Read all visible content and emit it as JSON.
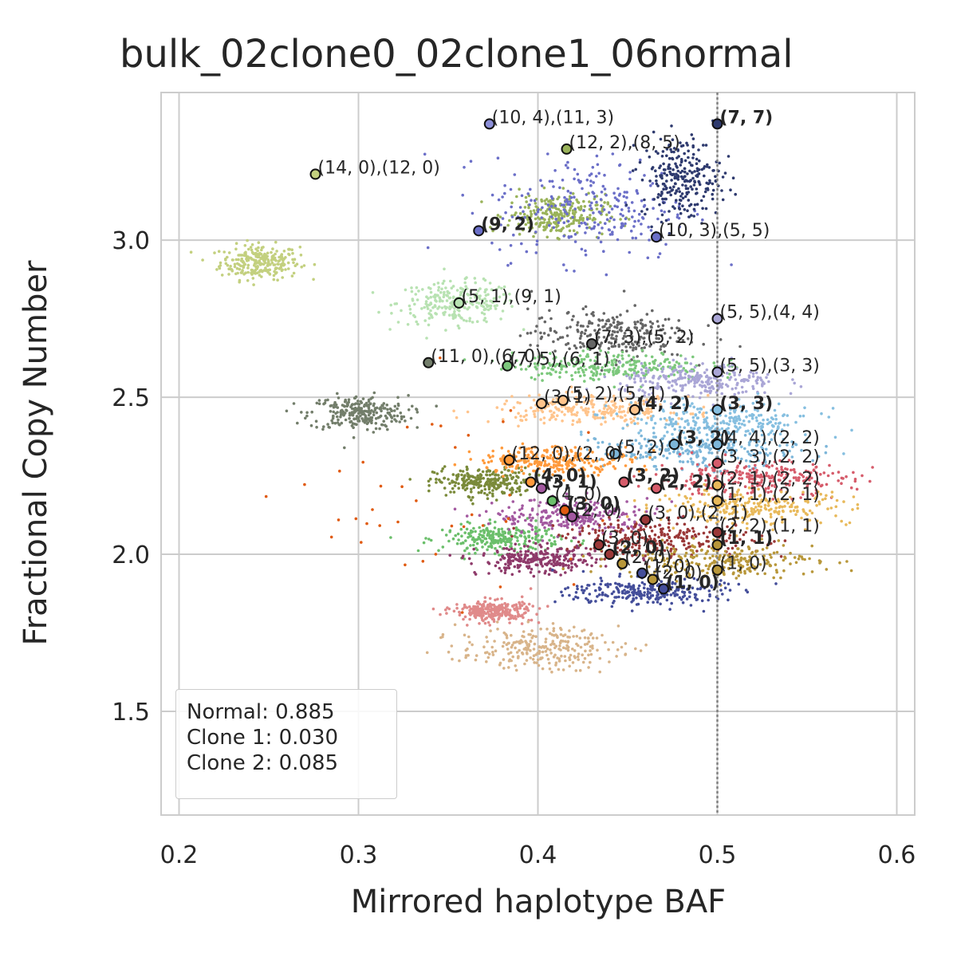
{
  "chart_data": {
    "type": "scatter",
    "title": "bulk_02clone0_02clone1_06normal",
    "xlabel": "Mirrored haplotype BAF",
    "ylabel": "Fractional Copy Number",
    "xlim": [
      0.19,
      0.61
    ],
    "ylim": [
      1.17,
      3.47
    ],
    "xticks": [
      "0.2",
      "0.3",
      "0.4",
      "0.5",
      "0.6"
    ],
    "yticks": [
      "1.5",
      "2.0",
      "2.5",
      "3.0"
    ],
    "grid": true,
    "reference_line": {
      "x": 0.5,
      "style": "dotted"
    },
    "legend": {
      "position": "bottom-left",
      "entries": [
        "Normal: 0.885",
        "Clone 1: 0.030",
        "Clone 2: 0.085"
      ]
    },
    "clusters": [
      {
        "color": "#c3d07f",
        "center": [
          0.245,
          2.93
        ],
        "spread": [
          0.02,
          0.05
        ]
      },
      {
        "color": "#b8e2b2",
        "center": [
          0.355,
          2.8
        ],
        "spread": [
          0.03,
          0.06
        ]
      },
      {
        "color": "#737e6b",
        "center": [
          0.3,
          2.45
        ],
        "spread": [
          0.025,
          0.05
        ]
      },
      {
        "color": "#7a8a3a",
        "center": [
          0.37,
          2.23
        ],
        "spread": [
          0.025,
          0.04
        ]
      },
      {
        "color": "#6bbf6b",
        "center": [
          0.38,
          2.05
        ],
        "spread": [
          0.03,
          0.04
        ]
      },
      {
        "color": "#9ab35a",
        "center": [
          0.41,
          3.08
        ],
        "spread": [
          0.025,
          0.06
        ]
      },
      {
        "color": "#6b6fc8",
        "center": [
          0.43,
          3.1
        ],
        "spread": [
          0.05,
          0.15
        ]
      },
      {
        "color": "#2e3a6e",
        "center": [
          0.48,
          3.2
        ],
        "spread": [
          0.02,
          0.12
        ]
      },
      {
        "color": "#666666",
        "center": [
          0.44,
          2.7
        ],
        "spread": [
          0.04,
          0.07
        ]
      },
      {
        "color": "#7cc87c",
        "center": [
          0.44,
          2.6
        ],
        "spread": [
          0.05,
          0.04
        ]
      },
      {
        "color": "#aaa6d6",
        "center": [
          0.49,
          2.55
        ],
        "spread": [
          0.04,
          0.05
        ]
      },
      {
        "color": "#ffc48c",
        "center": [
          0.43,
          2.46
        ],
        "spread": [
          0.05,
          0.04
        ]
      },
      {
        "color": "#86bfe0",
        "center": [
          0.5,
          2.42
        ],
        "spread": [
          0.05,
          0.06
        ]
      },
      {
        "color": "#7db6d9",
        "center": [
          0.49,
          2.33
        ],
        "spread": [
          0.05,
          0.05
        ]
      },
      {
        "color": "#ff9a3c",
        "center": [
          0.41,
          2.3
        ],
        "spread": [
          0.04,
          0.04
        ]
      },
      {
        "color": "#d65c6b",
        "center": [
          0.52,
          2.24
        ],
        "spread": [
          0.05,
          0.05
        ]
      },
      {
        "color": "#e8b95a",
        "center": [
          0.52,
          2.15
        ],
        "spread": [
          0.05,
          0.05
        ]
      },
      {
        "color": "#a359a0",
        "center": [
          0.42,
          2.12
        ],
        "spread": [
          0.04,
          0.05
        ]
      },
      {
        "color": "#8e3a6a",
        "center": [
          0.4,
          1.98
        ],
        "spread": [
          0.03,
          0.04
        ]
      },
      {
        "color": "#9a3838",
        "center": [
          0.47,
          2.05
        ],
        "spread": [
          0.05,
          0.05
        ]
      },
      {
        "color": "#b8973a",
        "center": [
          0.5,
          1.98
        ],
        "spread": [
          0.05,
          0.05
        ]
      },
      {
        "color": "#444e9a",
        "center": [
          0.46,
          1.88
        ],
        "spread": [
          0.04,
          0.04
        ]
      },
      {
        "color": "#e08a8a",
        "center": [
          0.375,
          1.82
        ],
        "spread": [
          0.02,
          0.03
        ]
      },
      {
        "color": "#d8b48a",
        "center": [
          0.4,
          1.7
        ],
        "spread": [
          0.04,
          0.06
        ]
      },
      {
        "color": "#e05a10",
        "center": [
          0.35,
          2.2
        ],
        "spread": [
          0.08,
          0.4
        ]
      }
    ],
    "points": [
      {
        "x": 0.373,
        "y": 3.37,
        "label": "(10, 4),(11, 3)",
        "bold": false,
        "fill": "#8c8fd8"
      },
      {
        "x": 0.5,
        "y": 3.37,
        "label": "(7, 7)",
        "bold": true,
        "fill": "#2e3a6e"
      },
      {
        "x": 0.416,
        "y": 3.29,
        "label": "(12, 2),(8, 5)",
        "bold": false,
        "fill": "#9ab35a"
      },
      {
        "x": 0.276,
        "y": 3.21,
        "label": "(14, 0),(12, 0)",
        "bold": false,
        "fill": "#c3d07f"
      },
      {
        "x": 0.367,
        "y": 3.03,
        "label": "(9, 2)",
        "bold": true,
        "fill": "#6b6fc8"
      },
      {
        "x": 0.466,
        "y": 3.01,
        "label": "(10, 3),(5, 5)",
        "bold": false,
        "fill": "#6b6fc8"
      },
      {
        "x": 0.356,
        "y": 2.8,
        "label": "(5, 1),(9, 1)",
        "bold": false,
        "fill": "#b8e2b2"
      },
      {
        "x": 0.5,
        "y": 2.75,
        "label": "(5, 5),(4, 4)",
        "bold": false,
        "fill": "#aaa6d6"
      },
      {
        "x": 0.43,
        "y": 2.67,
        "label": "(7, 3),(5, 2)",
        "bold": false,
        "fill": "#666666"
      },
      {
        "x": 0.339,
        "y": 2.61,
        "label": "(11, 0),(6, 0)",
        "bold": false,
        "fill": "#737e6b"
      },
      {
        "x": 0.383,
        "y": 2.6,
        "label": "(7, 5),(6, 1)",
        "bold": false,
        "fill": "#7cc87c"
      },
      {
        "x": 0.5,
        "y": 2.58,
        "label": "(5, 5),(3, 3)",
        "bold": false,
        "fill": "#aaa6d6"
      },
      {
        "x": 0.402,
        "y": 2.48,
        "label": "(3, 1)",
        "bold": false,
        "fill": "#ffc48c"
      },
      {
        "x": 0.414,
        "y": 2.49,
        "label": "(5, 2),(5, 1)",
        "bold": false,
        "fill": "#ffc48c"
      },
      {
        "x": 0.454,
        "y": 2.46,
        "label": "(4, 2)",
        "bold": true,
        "fill": "#ffc48c"
      },
      {
        "x": 0.5,
        "y": 2.46,
        "label": "(3, 3)",
        "bold": true,
        "fill": "#86bfe0"
      },
      {
        "x": 0.476,
        "y": 2.35,
        "label": "(3, 2)",
        "bold": true,
        "fill": "#7db6d9"
      },
      {
        "x": 0.5,
        "y": 2.35,
        "label": "(4, 4),(2, 2)",
        "bold": false,
        "fill": "#7db6d9"
      },
      {
        "x": 0.443,
        "y": 2.32,
        "label": "(5, 2)",
        "bold": false,
        "fill": "#7db6d9"
      },
      {
        "x": 0.5,
        "y": 2.29,
        "label": "(3, 3),(2, 2)",
        "bold": false,
        "fill": "#d65c6b"
      },
      {
        "x": 0.384,
        "y": 2.3,
        "label": "(12, 0),(2, 0)",
        "bold": false,
        "fill": "#ff9a3c"
      },
      {
        "x": 0.396,
        "y": 2.23,
        "label": "(4, 0)",
        "bold": true,
        "fill": "#ff9a3c"
      },
      {
        "x": 0.402,
        "y": 2.21,
        "label": "(3, 1)",
        "bold": true,
        "fill": "#a359a0"
      },
      {
        "x": 0.448,
        "y": 2.23,
        "label": "(3, 2)",
        "bold": true,
        "fill": "#d65c6b"
      },
      {
        "x": 0.466,
        "y": 2.21,
        "label": "(2, 2)",
        "bold": true,
        "fill": "#d65c6b"
      },
      {
        "x": 0.5,
        "y": 2.22,
        "label": "(2, 1),(2, 2)",
        "bold": false,
        "fill": "#e8b95a"
      },
      {
        "x": 0.408,
        "y": 2.17,
        "label": "(4, 0)",
        "bold": false,
        "fill": "#6bbf6b"
      },
      {
        "x": 0.5,
        "y": 2.17,
        "label": "(1, 1),(2, 1)",
        "bold": false,
        "fill": "#e8b95a"
      },
      {
        "x": 0.415,
        "y": 2.14,
        "label": "(3, 0)",
        "bold": true,
        "fill": "#e05a10"
      },
      {
        "x": 0.419,
        "y": 2.12,
        "label": "(2, 0)",
        "bold": false,
        "fill": "#a359a0"
      },
      {
        "x": 0.46,
        "y": 2.11,
        "label": "(3, 0),(2, 1)",
        "bold": false,
        "fill": "#9a3838"
      },
      {
        "x": 0.5,
        "y": 2.07,
        "label": "(2, 2),(1, 1)",
        "bold": false,
        "fill": "#9a3838"
      },
      {
        "x": 0.434,
        "y": 2.03,
        "label": "(3, 0)",
        "bold": false,
        "fill": "#9a3838"
      },
      {
        "x": 0.44,
        "y": 2.0,
        "label": "(2, 0)",
        "bold": true,
        "fill": "#9a3838"
      },
      {
        "x": 0.5,
        "y": 2.03,
        "label": "(1, 1)",
        "bold": true,
        "fill": "#b8973a"
      },
      {
        "x": 0.447,
        "y": 1.97,
        "label": "(2, 0)",
        "bold": false,
        "fill": "#b8973a"
      },
      {
        "x": 0.458,
        "y": 1.94,
        "label": "(1, 0)",
        "bold": false,
        "fill": "#444e9a"
      },
      {
        "x": 0.5,
        "y": 1.95,
        "label": "(1, 0)",
        "bold": false,
        "fill": "#b8973a"
      },
      {
        "x": 0.464,
        "y": 1.92,
        "label": "(2, 0)",
        "bold": false,
        "fill": "#b8973a"
      },
      {
        "x": 0.47,
        "y": 1.89,
        "label": "(1, 0)",
        "bold": true,
        "fill": "#444e9a"
      }
    ]
  }
}
